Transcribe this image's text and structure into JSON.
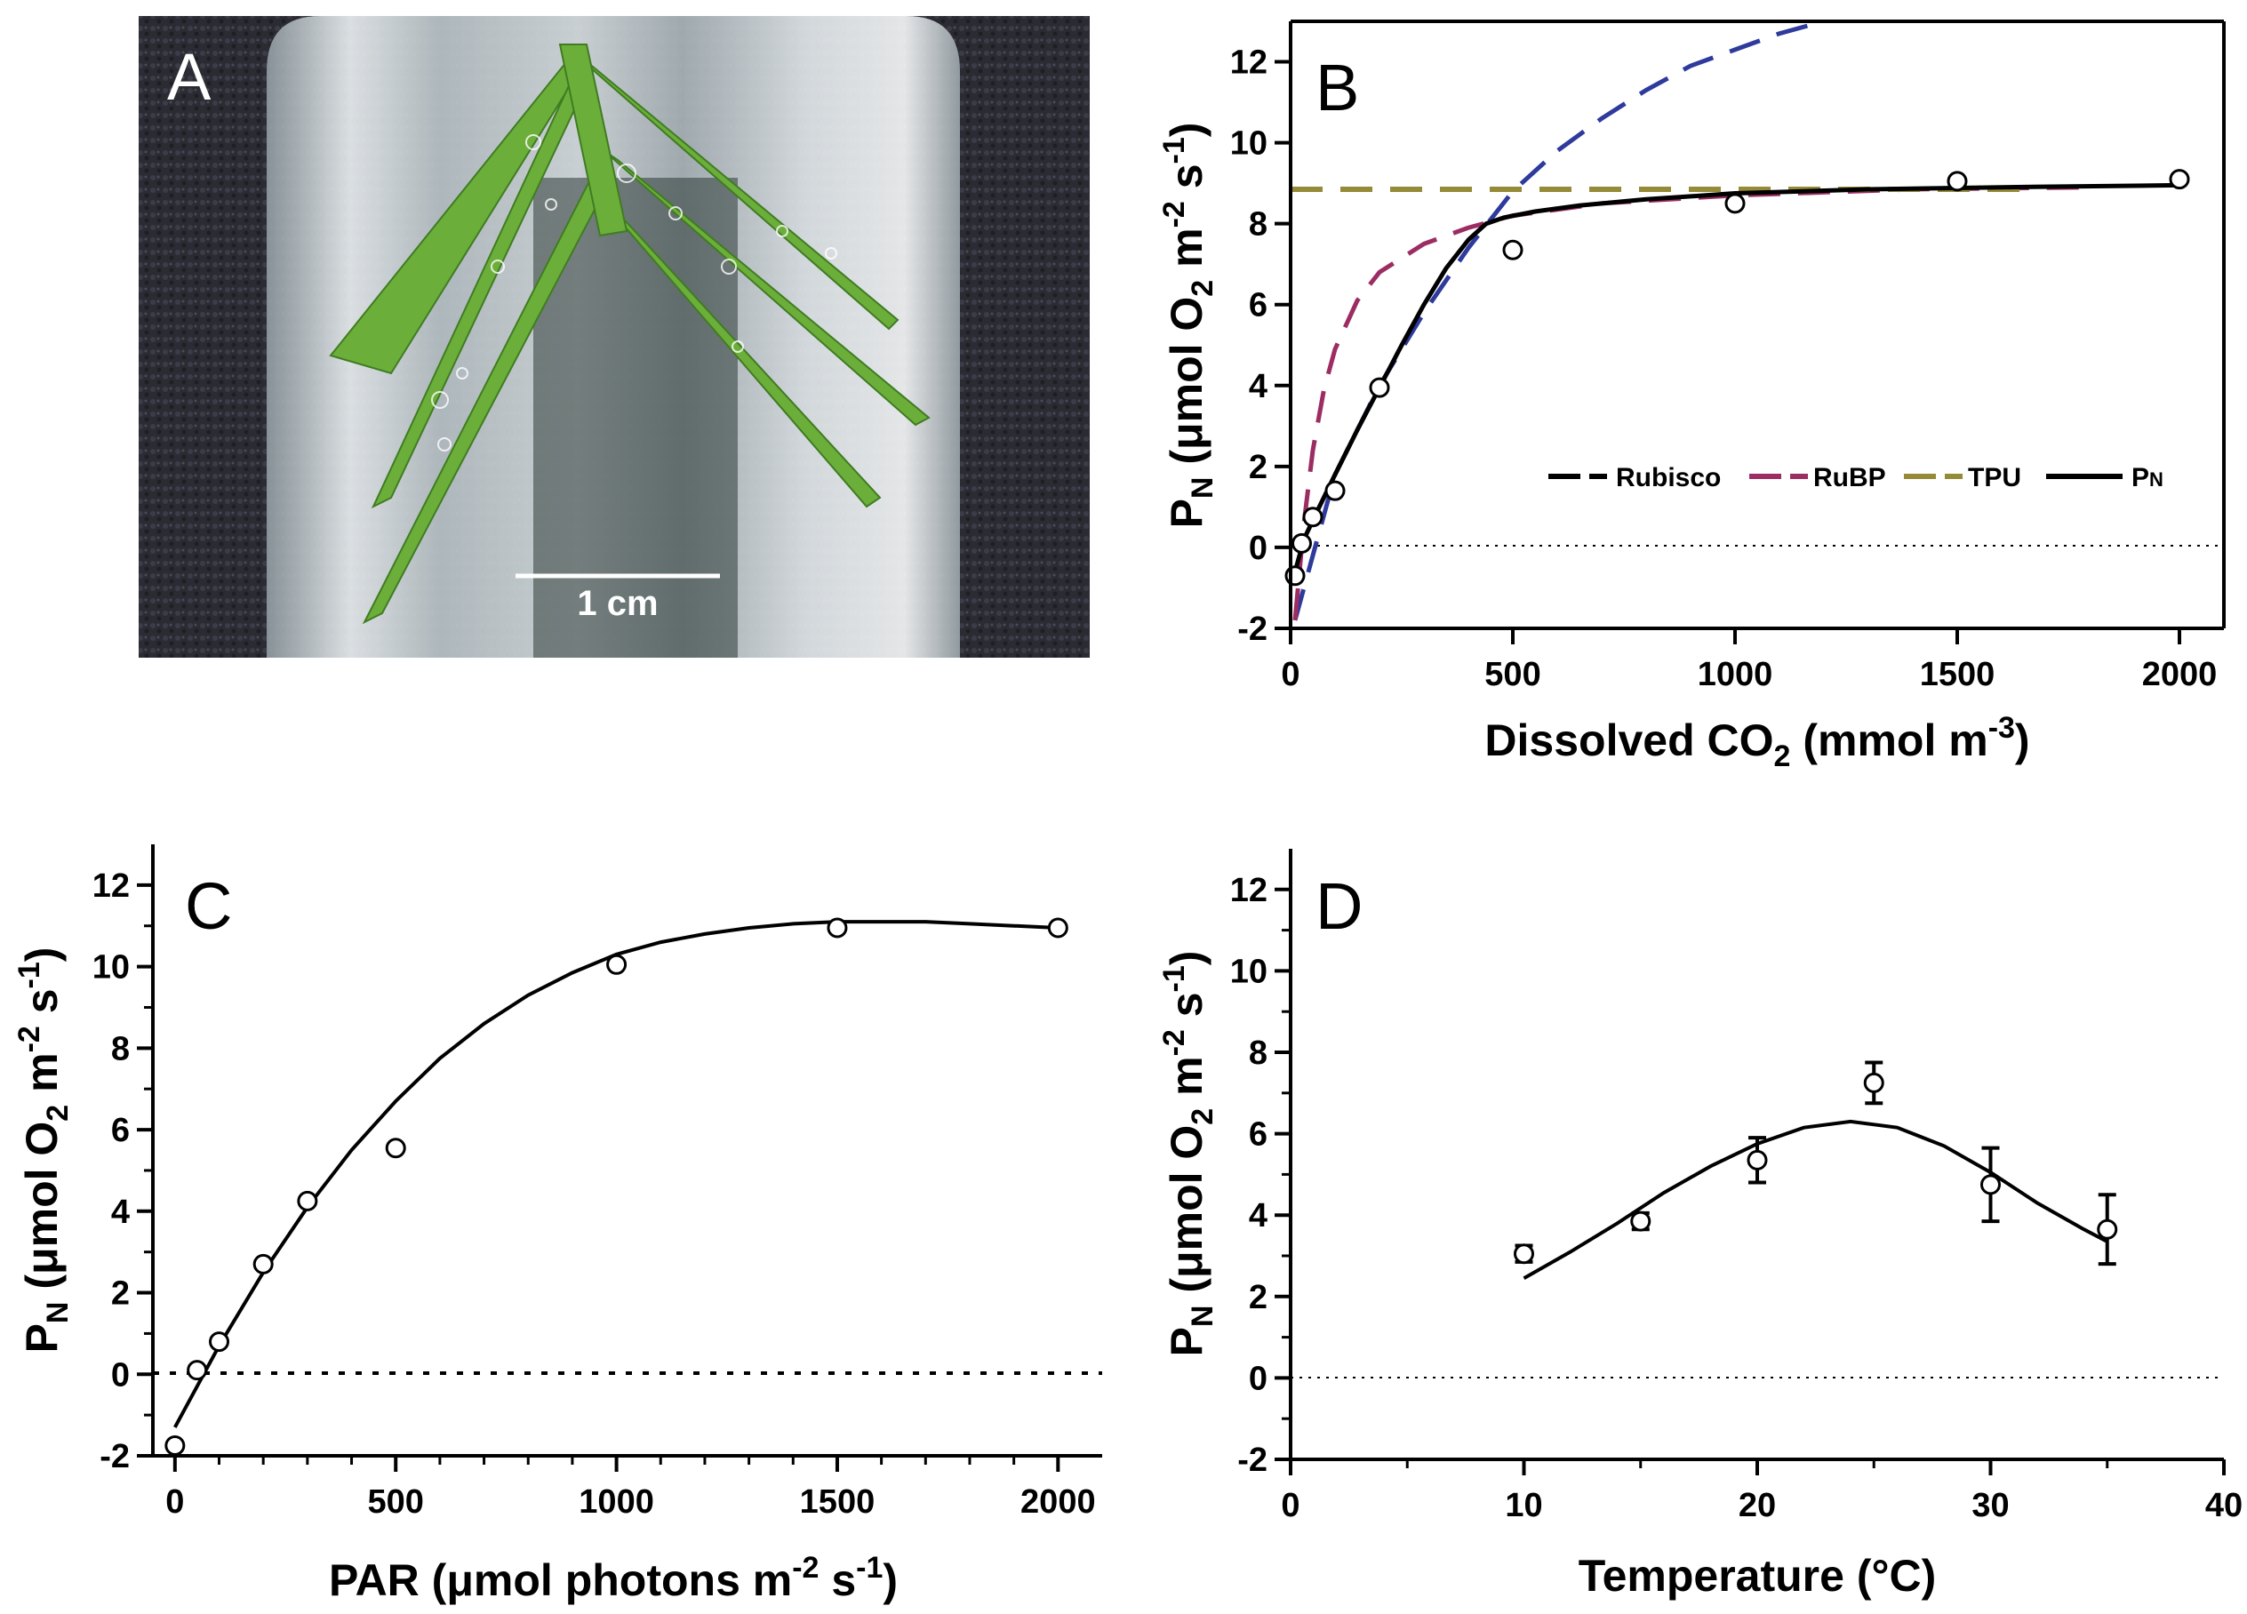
{
  "figure": {
    "background": "#ffffff"
  },
  "chart_data": [
    {
      "panel": "A",
      "type": "photo",
      "letter": "A",
      "scale_bar_label": "1 cm",
      "colors": {
        "background": "#27272f",
        "glass": "#c9d2d6",
        "leaf": "#6cae3a",
        "leaf_dark": "#3f7c22"
      }
    },
    {
      "panel": "B",
      "type": "line",
      "letter": "B",
      "xlabel": "Dissolved CO2 (mmol m-3)",
      "xlabel_parts": {
        "main": "Dissolved CO",
        "sub": "2",
        "mid": " (mmol m",
        "sup": "-3",
        "end": ")"
      },
      "ylabel_parts": {
        "main": "P",
        "sub": "N",
        "mid": " (μmol O",
        "sub2": "2",
        "mid2": " m",
        "sup": "-2",
        "mid3": " s",
        "sup2": "-1",
        "end": ")"
      },
      "xlim": [
        0,
        2100
      ],
      "ylim": [
        -2,
        13
      ],
      "xticks": [
        0,
        500,
        1000,
        1500,
        2000
      ],
      "xtick_labels": [
        "0",
        "500",
        "1000",
        "1500",
        "2000"
      ],
      "yticks": [
        -2,
        0,
        2,
        4,
        6,
        8,
        10,
        12
      ],
      "ytick_labels": [
        "-2",
        "0",
        "2",
        "4",
        "6",
        "8",
        "10",
        "12"
      ],
      "points": {
        "x": [
          10,
          25,
          50,
          100,
          200,
          500,
          1000,
          1500,
          2000
        ],
        "y": [
          -0.7,
          0.1,
          0.75,
          1.4,
          3.95,
          7.35,
          8.5,
          9.05,
          9.1
        ]
      },
      "series": [
        {
          "name": "Rubisco",
          "style": "dashed",
          "color": "#2e3a9c",
          "x": [
            10,
            100,
            200,
            300,
            400,
            500,
            600,
            700,
            800,
            900,
            1000,
            1100,
            1200
          ],
          "y": [
            -1.8,
            1.8,
            4.0,
            5.8,
            7.4,
            8.8,
            9.8,
            10.6,
            11.3,
            11.9,
            12.3,
            12.7,
            13.0
          ]
        },
        {
          "name": "RuBP",
          "style": "dashed",
          "color": "#9c2d62",
          "x": [
            10,
            30,
            50,
            75,
            100,
            150,
            200,
            300,
            400,
            500,
            700,
            1000,
            1400,
            1800
          ],
          "y": [
            -1.8,
            0.6,
            2.4,
            3.9,
            4.9,
            6.1,
            6.8,
            7.5,
            7.9,
            8.2,
            8.5,
            8.7,
            8.85,
            8.9
          ]
        },
        {
          "name": "TPU",
          "style": "dashed",
          "color": "#958a37",
          "x": [
            0,
            1650
          ],
          "y": [
            8.85,
            8.85
          ]
        },
        {
          "name": "PN",
          "style": "solid",
          "color": "#000000",
          "x": [
            10,
            30,
            60,
            100,
            150,
            200,
            250,
            300,
            350,
            400,
            440,
            480,
            550,
            650,
            800,
            1000,
            1300,
            1600,
            2000
          ],
          "y": [
            -0.6,
            0.2,
            0.9,
            1.8,
            2.9,
            3.95,
            5.0,
            6.0,
            6.9,
            7.6,
            8.0,
            8.15,
            8.3,
            8.45,
            8.6,
            8.75,
            8.85,
            8.9,
            8.95
          ]
        }
      ],
      "legend": {
        "position": "bottom-right",
        "entries": [
          "Rubisco",
          "RuBP",
          "TPU",
          "PN"
        ],
        "pn_label": {
          "main": "P",
          "sub": "N"
        }
      }
    },
    {
      "panel": "C",
      "type": "line",
      "letter": "C",
      "xlabel": "PAR (μmol photons m-2 s-1)",
      "xlabel_parts": {
        "main": "PAR (μmol photons m",
        "sup": "-2",
        "mid": " s",
        "sup2": "-1",
        "end": ")"
      },
      "ylabel_parts": {
        "main": "P",
        "sub": "N",
        "mid": " (μmol O",
        "sub2": "2",
        "mid2": " m",
        "sup": "-2",
        "mid3": " s",
        "sup2": "-1",
        "end": ")"
      },
      "xlim": [
        -50,
        2100
      ],
      "ylim": [
        -2,
        13
      ],
      "xticks": [
        0,
        500,
        1000,
        1500,
        2000
      ],
      "xtick_labels": [
        "0",
        "500",
        "1000",
        "1500",
        "2000"
      ],
      "yticks": [
        -2,
        0,
        2,
        4,
        6,
        8,
        10,
        12
      ],
      "ytick_labels": [
        "-2",
        "0",
        "2",
        "4",
        "6",
        "8",
        "10",
        "12"
      ],
      "points": {
        "x": [
          0,
          50,
          100,
          200,
          300,
          500,
          1000,
          1500,
          2000
        ],
        "y": [
          -1.75,
          0.1,
          0.8,
          2.7,
          4.25,
          5.55,
          10.05,
          10.95,
          10.95
        ]
      },
      "series": [
        {
          "name": "fit",
          "style": "solid",
          "color": "#000000",
          "x": [
            0,
            100,
            200,
            300,
            400,
            500,
            600,
            700,
            800,
            900,
            1000,
            1100,
            1200,
            1300,
            1400,
            1500,
            1600,
            1700,
            1800,
            1900,
            2000
          ],
          "y": [
            -1.3,
            0.7,
            2.5,
            4.1,
            5.5,
            6.7,
            7.75,
            8.6,
            9.3,
            9.85,
            10.3,
            10.6,
            10.8,
            10.95,
            11.05,
            11.1,
            11.1,
            11.1,
            11.05,
            11.0,
            10.95
          ]
        }
      ]
    },
    {
      "panel": "D",
      "type": "line",
      "letter": "D",
      "xlabel": "Temperature (°C)",
      "ylabel_parts": {
        "main": "P",
        "sub": "N",
        "mid": " (μmol O",
        "sub2": "2",
        "mid2": " m",
        "sup": "-2",
        "mid3": " s",
        "sup2": "-1",
        "end": ")"
      },
      "xlim": [
        0,
        40
      ],
      "ylim": [
        -2,
        13
      ],
      "xticks": [
        0,
        10,
        20,
        30,
        40
      ],
      "xtick_labels": [
        "0",
        "10",
        "20",
        "30",
        "40"
      ],
      "yticks": [
        -2,
        0,
        2,
        4,
        6,
        8,
        10,
        12
      ],
      "ytick_labels": [
        "-2",
        "0",
        "2",
        "4",
        "6",
        "8",
        "10",
        "12"
      ],
      "points": {
        "x": [
          10,
          15,
          20,
          25,
          30,
          35
        ],
        "y": [
          3.05,
          3.85,
          5.35,
          7.25,
          4.75,
          3.65
        ],
        "err": [
          0.2,
          0.2,
          0.55,
          0.5,
          0.9,
          0.85
        ]
      },
      "series": [
        {
          "name": "fit",
          "style": "solid",
          "color": "#000000",
          "x": [
            10,
            12,
            14,
            16,
            18,
            20,
            22,
            24,
            26,
            28,
            30,
            32,
            34,
            35
          ],
          "y": [
            2.45,
            3.1,
            3.8,
            4.55,
            5.2,
            5.75,
            6.15,
            6.3,
            6.15,
            5.7,
            5.05,
            4.3,
            3.65,
            3.35
          ]
        }
      ]
    }
  ]
}
